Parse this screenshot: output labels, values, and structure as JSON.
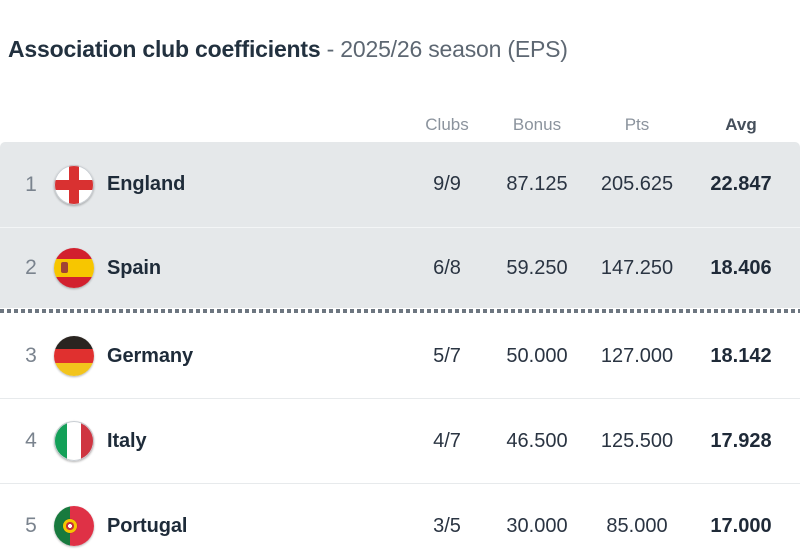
{
  "title": {
    "main": "Association club coefficients",
    "suffix": " - 2025/26 season (EPS)"
  },
  "table": {
    "columns": [
      {
        "key": "clubs",
        "label": "Clubs"
      },
      {
        "key": "bonus",
        "label": "Bonus"
      },
      {
        "key": "pts",
        "label": "Pts"
      },
      {
        "key": "avg",
        "label": "Avg"
      }
    ],
    "rows": [
      {
        "rank": "1",
        "country": "England",
        "flag": "england",
        "clubs": "9/9",
        "bonus": "87.125",
        "pts": "205.625",
        "avg": "22.847",
        "highlighted": true
      },
      {
        "rank": "2",
        "country": "Spain",
        "flag": "spain",
        "clubs": "6/8",
        "bonus": "59.250",
        "pts": "147.250",
        "avg": "18.406",
        "highlighted": true,
        "cutoff_after": true
      },
      {
        "rank": "3",
        "country": "Germany",
        "flag": "germany",
        "clubs": "5/7",
        "bonus": "50.000",
        "pts": "127.000",
        "avg": "18.142"
      },
      {
        "rank": "4",
        "country": "Italy",
        "flag": "italy",
        "clubs": "4/7",
        "bonus": "46.500",
        "pts": "125.500",
        "avg": "17.928"
      },
      {
        "rank": "5",
        "country": "Portugal",
        "flag": "portugal",
        "clubs": "3/5",
        "bonus": "30.000",
        "pts": "85.000",
        "avg": "17.000"
      }
    ]
  },
  "colors": {
    "title_dark": "#22313f",
    "subtitle_gray": "#5d6772",
    "header_gray": "#8b939d",
    "header_avg": "#454f5b",
    "row_highlight_bg": "#e5e8ea",
    "rank_gray": "#7a838e",
    "country_text": "#1e2b39",
    "value_text": "#2a3442",
    "divider": "#e7eaec",
    "dotted_cutoff_line": "#6d7680",
    "england_red": "#d93131",
    "spain_red": "#d2202e",
    "spain_yellow": "#f7c600",
    "germany_black": "#2a2420",
    "germany_red": "#e0302f",
    "germany_gold": "#f2c41d",
    "italy_green": "#13a058",
    "italy_red": "#cf3541",
    "portugal_green": "#187a3e",
    "portugal_red": "#df3146"
  }
}
